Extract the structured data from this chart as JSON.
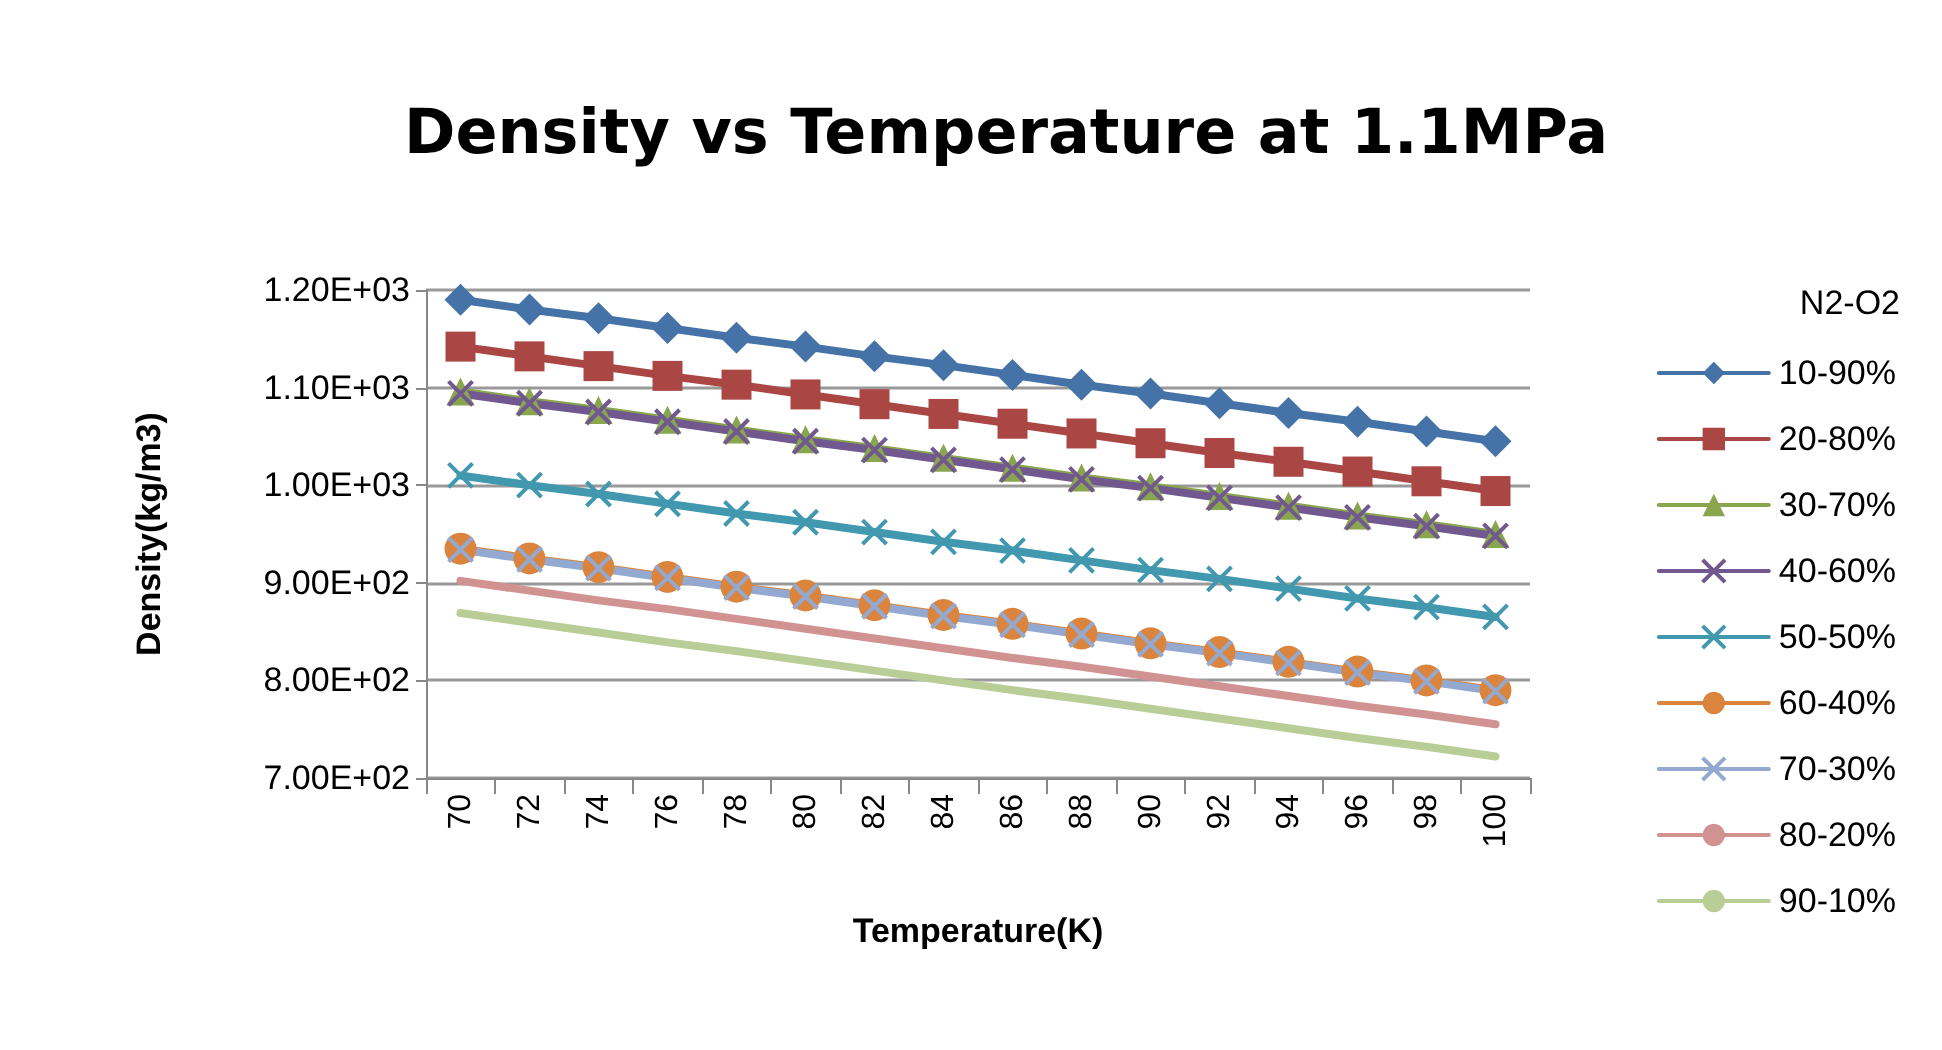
{
  "chart_data": {
    "type": "line",
    "title": "Density vs Temperature at 1.1MPa",
    "xlabel": "Temperature(K)",
    "ylabel": "Density(kg/m3)",
    "legend_title": "N2-O2",
    "legend": "right",
    "categories": [
      "70",
      "72",
      "74",
      "76",
      "78",
      "80",
      "82",
      "84",
      "86",
      "88",
      "90",
      "92",
      "94",
      "96",
      "98",
      "100"
    ],
    "ylim": [
      700,
      1200
    ],
    "yticks": [
      {
        "value": 700,
        "label": "7.00E+02"
      },
      {
        "value": 800,
        "label": "8.00E+02"
      },
      {
        "value": 900,
        "label": "9.00E+02"
      },
      {
        "value": 1000,
        "label": "1.00E+03"
      },
      {
        "value": 1100,
        "label": "1.10E+03"
      },
      {
        "value": 1200,
        "label": "1.20E+03"
      }
    ],
    "grid": "y",
    "series": [
      {
        "name": "10-90%",
        "color": "#4572a7",
        "marker": "diamond",
        "values": [
          1190,
          1180,
          1171,
          1161,
          1151,
          1142,
          1132,
          1123,
          1113,
          1103,
          1094,
          1084,
          1074,
          1065,
          1055,
          1045
        ]
      },
      {
        "name": "20-80%",
        "color": "#aa4643",
        "marker": "square",
        "values": [
          1142,
          1132,
          1122,
          1112,
          1103,
          1093,
          1083,
          1073,
          1063,
          1053,
          1043,
          1033,
          1024,
          1014,
          1004,
          994
        ]
      },
      {
        "name": "30-70%",
        "color": "#89a54e",
        "marker": "triangle",
        "values": [
          1096,
          1086,
          1077,
          1067,
          1057,
          1047,
          1038,
          1028,
          1018,
          1008,
          999,
          989,
          979,
          969,
          960,
          950
        ]
      },
      {
        "name": "40-60%",
        "color": "#71588f",
        "marker": "cross",
        "values": [
          1094,
          1084,
          1075,
          1065,
          1055,
          1045,
          1036,
          1026,
          1016,
          1006,
          997,
          987,
          977,
          967,
          958,
          948
        ]
      },
      {
        "name": "50-50%",
        "color": "#4198af",
        "marker": "cross",
        "values": [
          1010,
          1000,
          991,
          981,
          971,
          962,
          952,
          942,
          933,
          923,
          913,
          904,
          894,
          884,
          875,
          865
        ]
      },
      {
        "name": "60-40%",
        "color": "#db843d",
        "marker": "circle",
        "values": [
          935,
          925,
          916,
          906,
          896,
          887,
          877,
          867,
          858,
          848,
          838,
          829,
          819,
          809,
          800,
          790
        ]
      },
      {
        "name": "70-30%",
        "color": "#93a9cf",
        "marker": "cross",
        "values": [
          934,
          924,
          915,
          905,
          895,
          886,
          876,
          866,
          857,
          847,
          837,
          828,
          818,
          808,
          799,
          789
        ]
      },
      {
        "name": "80-20%",
        "color": "#d19392",
        "marker": "none",
        "values": [
          902,
          892,
          882,
          873,
          863,
          853,
          843,
          833,
          823,
          814,
          804,
          794,
          784,
          774,
          765,
          755
        ]
      },
      {
        "name": "90-10%",
        "color": "#b9cd96",
        "marker": "none",
        "values": [
          869,
          859,
          849,
          839,
          830,
          820,
          810,
          800,
          790,
          781,
          771,
          761,
          751,
          741,
          732,
          722
        ]
      }
    ]
  }
}
